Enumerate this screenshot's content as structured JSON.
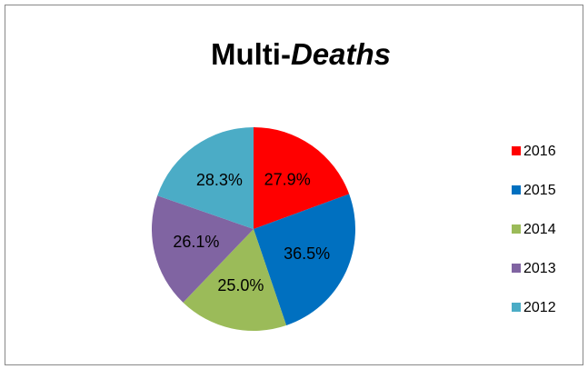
{
  "chart_data": {
    "type": "pie",
    "title": [
      "Multi-",
      "Deaths"
    ],
    "categories": [
      "2016",
      "2015",
      "2014",
      "2013",
      "2012"
    ],
    "values": [
      27.9,
      36.5,
      25.0,
      26.1,
      28.3
    ],
    "value_labels": [
      "27.9%",
      "36.5%",
      "25.0%",
      "26.1%",
      "28.3%"
    ],
    "colors": [
      "#ff0000",
      "#0070c0",
      "#9bbb59",
      "#8064a2",
      "#4bacc6"
    ],
    "legend": "right"
  }
}
